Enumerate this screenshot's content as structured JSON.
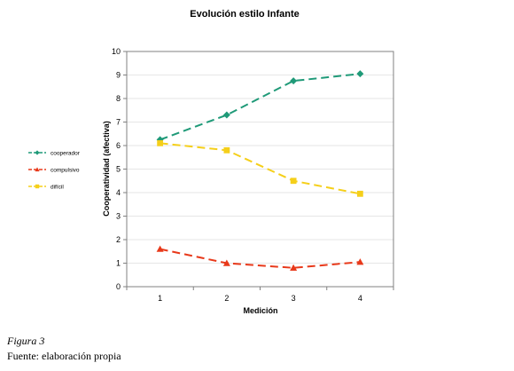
{
  "chart_data": {
    "type": "line",
    "title": "Evolución estilo Infante",
    "xlabel": "Medición",
    "ylabel": "Cooperatividad (afectiva)",
    "categories": [
      "1",
      "2",
      "3",
      "4"
    ],
    "ylim": [
      0,
      10
    ],
    "yticks": [
      "0",
      "1",
      "2",
      "3",
      "4",
      "5",
      "6",
      "7",
      "8",
      "9",
      "10"
    ],
    "grid": true,
    "legend_position": "left",
    "series": [
      {
        "name": "cooperador",
        "values": [
          6.25,
          7.3,
          8.75,
          9.05
        ],
        "color": "#1f9a78",
        "marker": "diamond"
      },
      {
        "name": "compulsivo",
        "values": [
          1.6,
          1.0,
          0.8,
          1.05
        ],
        "color": "#e8391a",
        "marker": "triangle"
      },
      {
        "name": "difícil",
        "values": [
          6.1,
          5.8,
          4.5,
          3.95
        ],
        "color": "#f5cf1a",
        "marker": "square"
      }
    ]
  },
  "figure_caption": "Figura 3",
  "source_caption": "Fuente: elaboración propia"
}
